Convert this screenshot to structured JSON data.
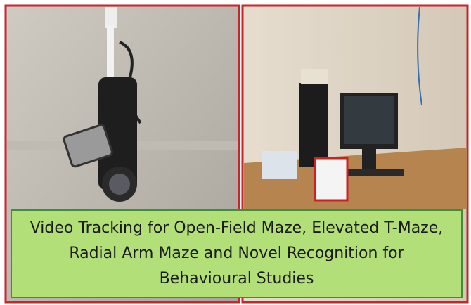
{
  "caption": {
    "lines": [
      "Video Tracking for Open-Field Maze, Elevated T-Maze,",
      "Radial Arm Maze and Novel Recognition for",
      "Behavioural Studies"
    ]
  }
}
